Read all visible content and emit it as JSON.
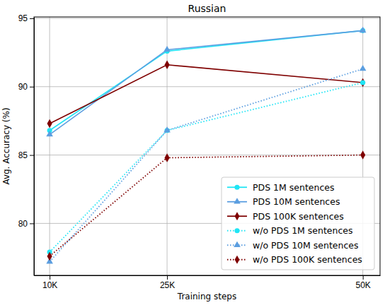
{
  "chart_data": {
    "type": "line",
    "title": "Russian",
    "x_label": "Training steps",
    "y_label": "Avg. Accuracy (%)",
    "x": [
      10000,
      25000,
      50000
    ],
    "xlim": [
      8000,
      52200
    ],
    "xticks": [
      {
        "value": 10000,
        "label": "10K"
      },
      {
        "value": 25000,
        "label": "25K"
      },
      {
        "value": 50000,
        "label": "50K"
      }
    ],
    "ylim": [
      76.2,
      95.1
    ],
    "yticks": [
      80,
      85,
      90,
      95
    ],
    "grid": true,
    "legend": "lower right",
    "series": [
      {
        "name": "PDS 1M sentences",
        "color": "#1fe5f5",
        "marker": "circle",
        "line_style": "solid",
        "values": [
          86.8,
          92.6,
          94.1
        ]
      },
      {
        "name": "PDS 10M sentences",
        "color": "#5b9ee0",
        "marker": "triangle",
        "line_style": "solid",
        "values": [
          86.5,
          92.7,
          94.1
        ]
      },
      {
        "name": "PDS 100K sentences",
        "color": "#7f0000",
        "marker": "diamond",
        "line_style": "solid",
        "values": [
          87.3,
          91.6,
          90.3
        ]
      },
      {
        "name": "w/o PDS 1M sentences",
        "color": "#1fe5f5",
        "marker": "circle",
        "line_style": "dotted",
        "values": [
          77.9,
          86.8,
          90.3
        ]
      },
      {
        "name": "w/o PDS 10M sentences",
        "color": "#5b9ee0",
        "marker": "triangle",
        "line_style": "dotted",
        "values": [
          77.2,
          86.8,
          91.3
        ]
      },
      {
        "name": "w/o PDS 100K sentences",
        "color": "#7f0000",
        "marker": "diamond",
        "line_style": "dotted",
        "values": [
          77.6,
          84.8,
          85.0
        ]
      }
    ]
  }
}
